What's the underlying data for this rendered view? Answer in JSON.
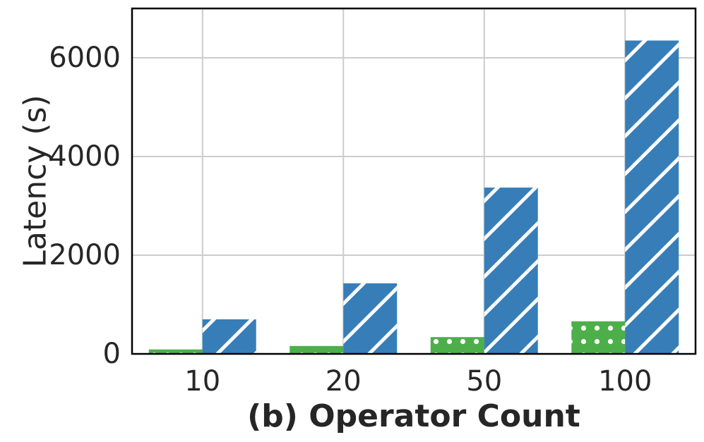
{
  "chart_data": {
    "type": "bar",
    "title": "",
    "xlabel": "(b) Operator Count",
    "ylabel": "Latency (s)",
    "categories": [
      "10",
      "20",
      "50",
      "100"
    ],
    "ylim": [
      0,
      7000
    ],
    "yticks": [
      0,
      2000,
      4000,
      6000
    ],
    "grid": true,
    "legend": "none",
    "series": [
      {
        "color": "#4daf4a",
        "pattern": "dots",
        "values": [
          90,
          160,
          340,
          660
        ]
      },
      {
        "color": "#377eb8",
        "pattern": "diagonal-hatch",
        "values": [
          700,
          1430,
          3370,
          6350
        ]
      }
    ]
  }
}
